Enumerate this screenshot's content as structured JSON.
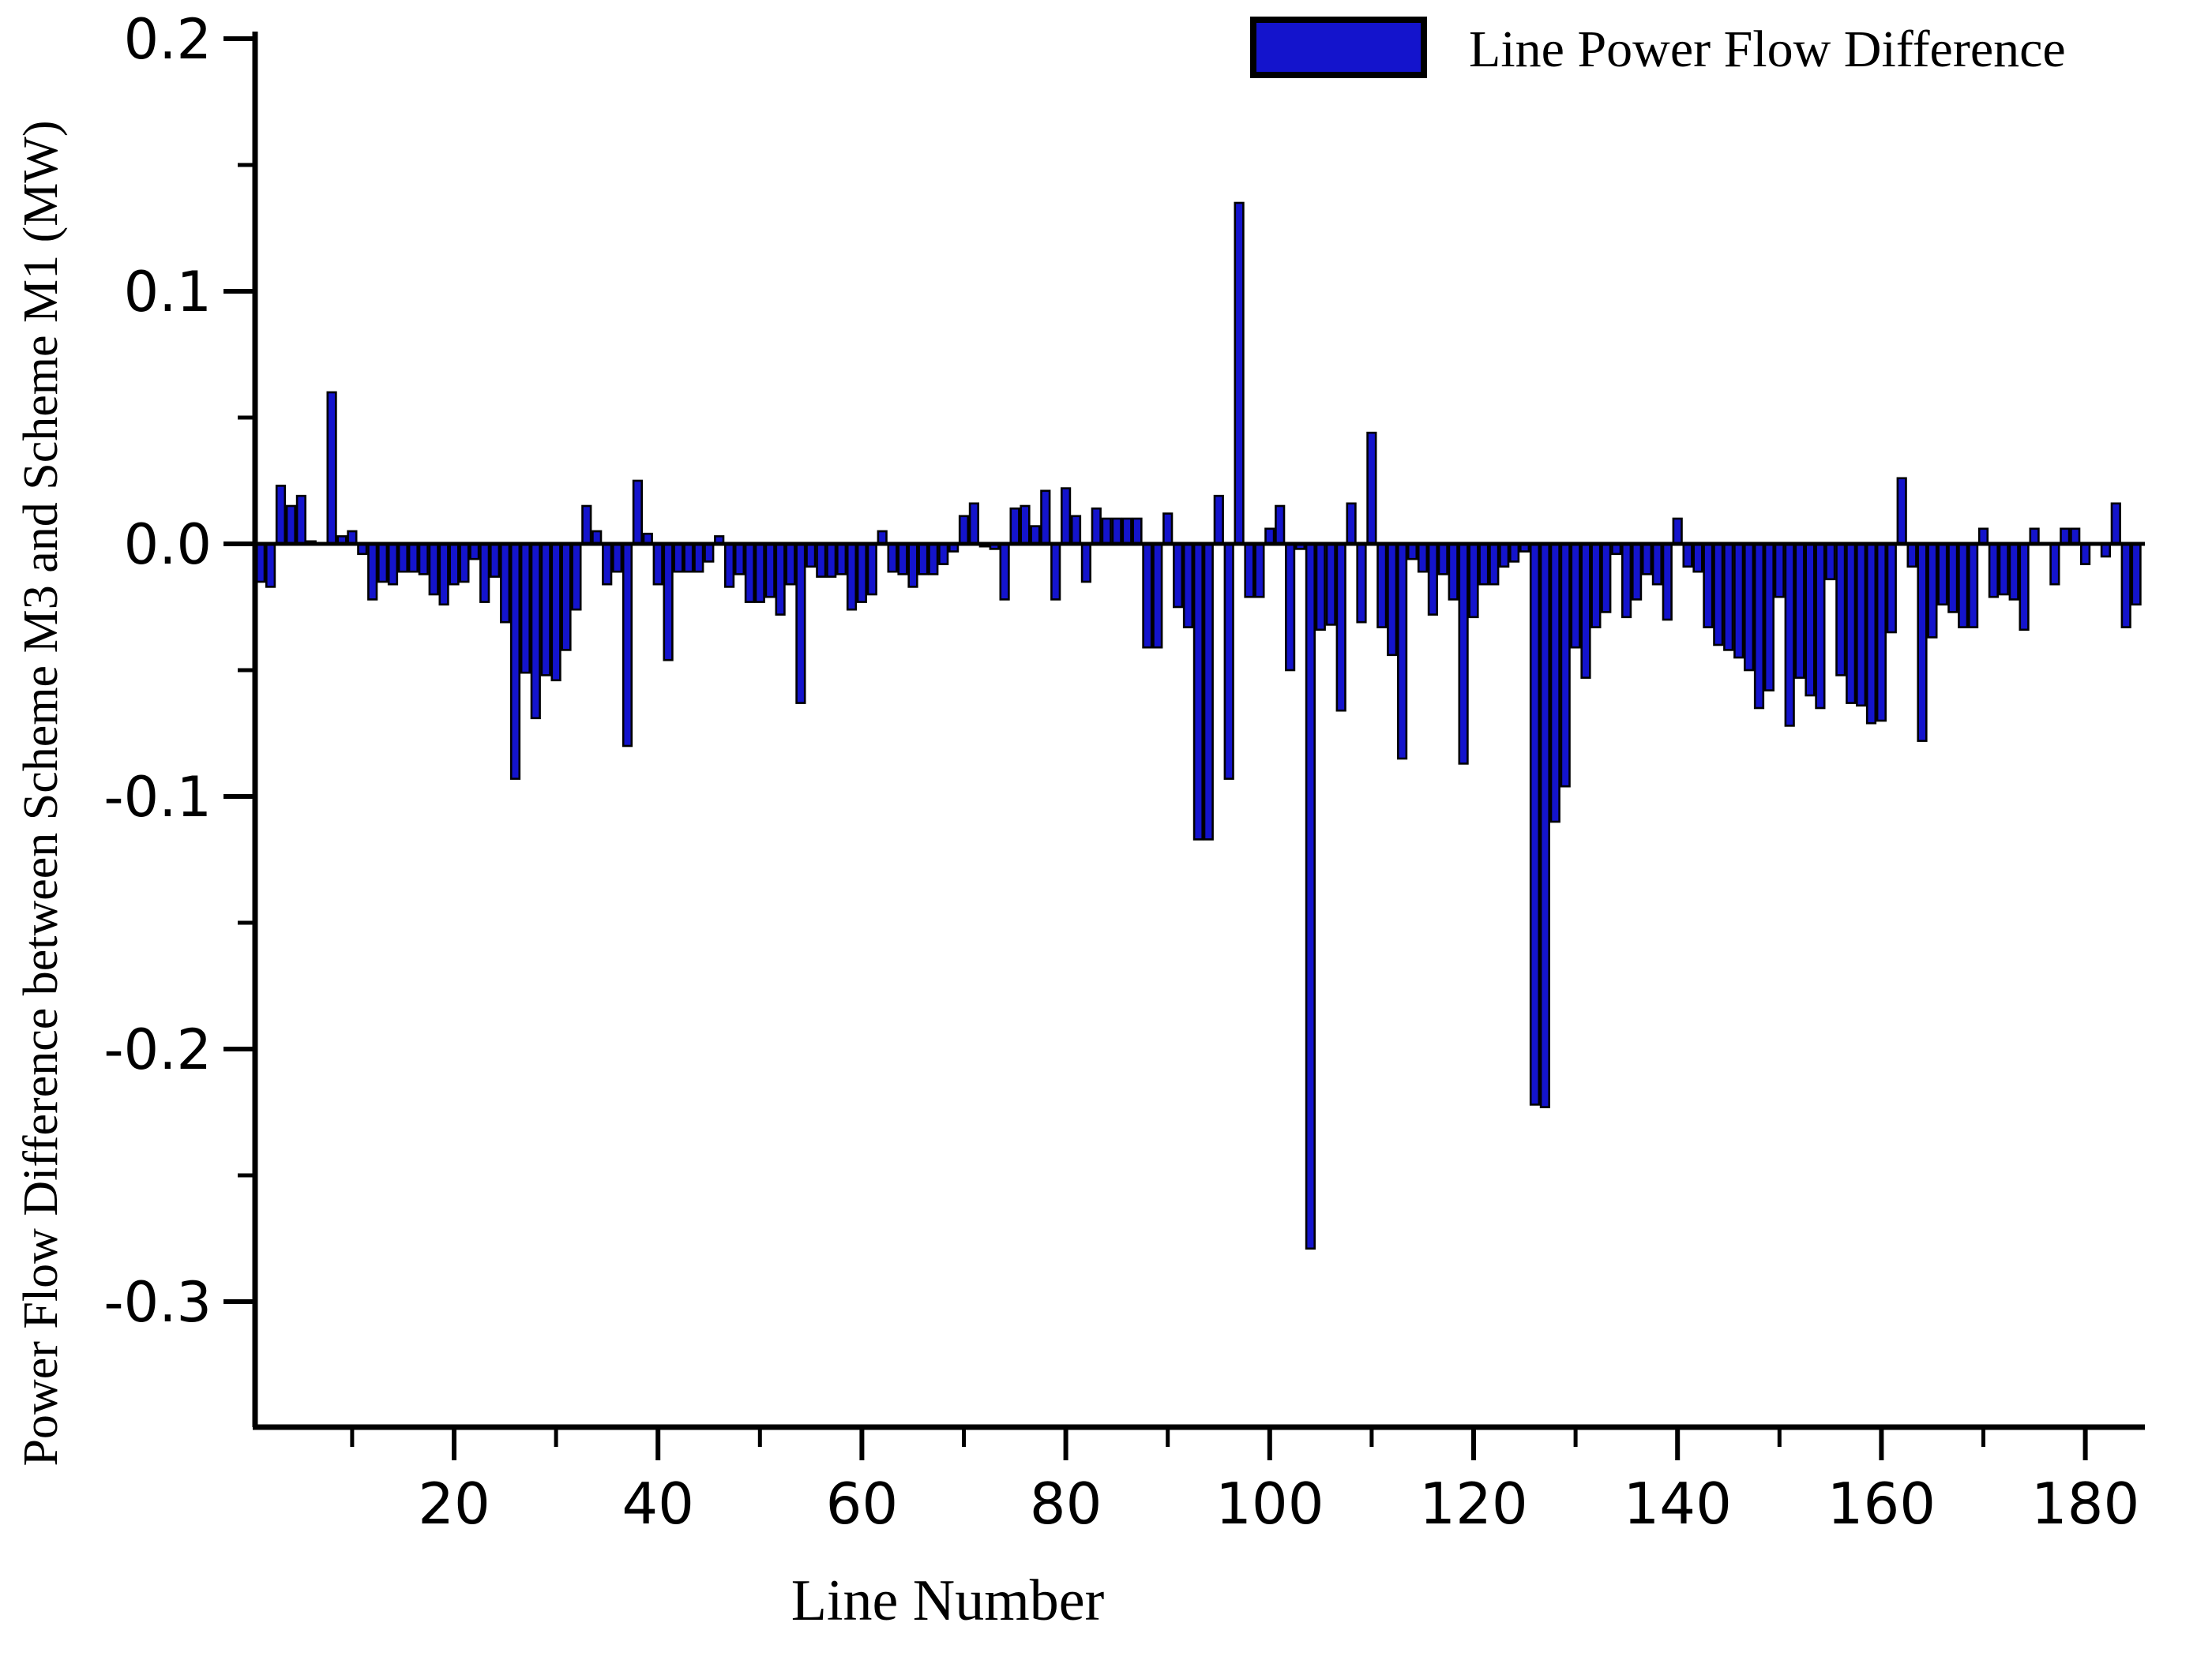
{
  "figure": {
    "background": "#ffffff",
    "axis_color": "#000000"
  },
  "chart_data": {
    "type": "bar",
    "title": "",
    "xlabel": "Line Number",
    "ylabel": "Power Flow Difference between Scheme M3 and Scheme M1 (MW)",
    "legend": {
      "label": "Line Power Flow Difference",
      "position": "top-right"
    },
    "grid": false,
    "bar_color": "#1414CC",
    "bar_edge_color": "#000000",
    "xlim": [
      0,
      186
    ],
    "ylim": [
      -0.35,
      0.2
    ],
    "x_first_line": 1,
    "y_major_ticks": [
      0.2,
      0.1,
      0.0,
      -0.1,
      -0.2,
      -0.3
    ],
    "y_tick_labels": [
      "0.2",
      "0.1",
      "0.0",
      "-0.1",
      "-0.2",
      "-0.3"
    ],
    "y_minor_ticks": [
      0.15,
      0.05,
      -0.05,
      -0.15,
      -0.25
    ],
    "x_major_ticks": [
      20,
      40,
      60,
      80,
      100,
      120,
      140,
      160,
      180
    ],
    "x_tick_labels": [
      "20",
      "40",
      "60",
      "80",
      "100",
      "120",
      "140",
      "160",
      "180"
    ],
    "x_minor_ticks": [
      10,
      30,
      50,
      70,
      90,
      110,
      130,
      150,
      170
    ],
    "values": [
      -0.015,
      -0.017,
      0.023,
      0.015,
      0.019,
      0.001,
      0.0,
      0.06,
      0.003,
      0.005,
      -0.004,
      -0.022,
      -0.015,
      -0.016,
      -0.011,
      -0.011,
      -0.012,
      -0.02,
      -0.024,
      -0.016,
      -0.015,
      -0.006,
      -0.023,
      -0.013,
      -0.031,
      -0.093,
      -0.051,
      -0.069,
      -0.052,
      -0.054,
      -0.042,
      -0.026,
      0.015,
      0.005,
      -0.016,
      -0.011,
      -0.08,
      0.025,
      0.004,
      -0.016,
      -0.046,
      -0.011,
      -0.011,
      -0.011,
      -0.007,
      0.003,
      -0.017,
      -0.012,
      -0.023,
      -0.023,
      -0.021,
      -0.028,
      -0.016,
      -0.063,
      -0.009,
      -0.013,
      -0.013,
      -0.012,
      -0.026,
      -0.023,
      -0.02,
      0.005,
      -0.011,
      -0.012,
      -0.017,
      -0.012,
      -0.012,
      -0.008,
      -0.003,
      0.011,
      0.016,
      -0.001,
      -0.002,
      -0.022,
      0.014,
      0.015,
      0.007,
      0.021,
      -0.022,
      0.022,
      0.011,
      -0.015,
      0.014,
      0.01,
      0.01,
      0.01,
      0.01,
      -0.041,
      -0.041,
      0.012,
      -0.025,
      -0.033,
      -0.117,
      -0.117,
      0.019,
      -0.093,
      0.135,
      -0.021,
      -0.021,
      0.006,
      0.015,
      -0.05,
      -0.002,
      -0.279,
      -0.034,
      -0.032,
      -0.066,
      0.016,
      -0.031,
      0.044,
      -0.033,
      -0.044,
      -0.085,
      -0.006,
      -0.011,
      -0.028,
      -0.012,
      -0.022,
      -0.087,
      -0.029,
      -0.016,
      -0.016,
      -0.009,
      -0.007,
      -0.003,
      -0.222,
      -0.223,
      -0.11,
      -0.096,
      -0.041,
      -0.053,
      -0.033,
      -0.027,
      -0.004,
      -0.029,
      -0.022,
      -0.012,
      -0.016,
      -0.03,
      0.01,
      -0.009,
      -0.011,
      -0.033,
      -0.04,
      -0.042,
      -0.045,
      -0.05,
      -0.065,
      -0.058,
      -0.021,
      -0.072,
      -0.053,
      -0.06,
      -0.065,
      -0.014,
      -0.052,
      -0.063,
      -0.064,
      -0.071,
      -0.07,
      -0.035,
      0.026,
      -0.009,
      -0.078,
      -0.037,
      -0.024,
      -0.027,
      -0.033,
      -0.033,
      0.006,
      -0.021,
      -0.02,
      -0.022,
      -0.034,
      0.006,
      0.0,
      -0.016,
      0.006,
      0.006,
      -0.008,
      0.0,
      -0.005,
      0.016,
      -0.033,
      -0.024
    ]
  }
}
